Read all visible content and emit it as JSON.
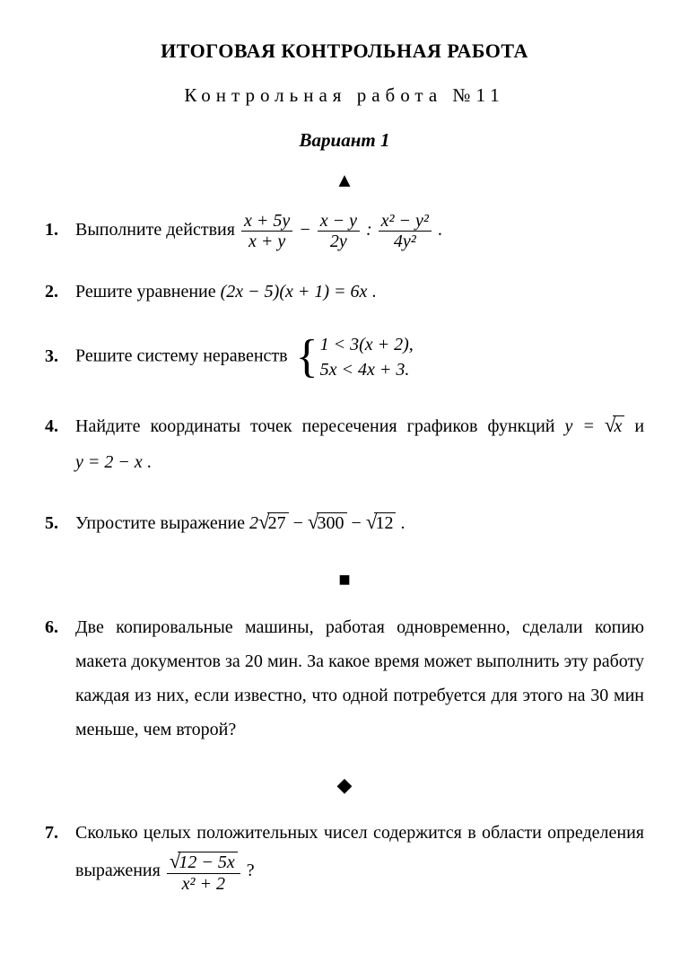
{
  "header": {
    "main_title": "ИТОГОВАЯ КОНТРОЛЬНАЯ РАБОТА",
    "subtitle": "Контрольная работа №11",
    "variant": "Вариант 1"
  },
  "markers": {
    "triangle": "▲",
    "square": "■",
    "diamond": "◆"
  },
  "tasks": {
    "t1": {
      "text": "Выполните действия ",
      "f1_num": "x + 5y",
      "f1_den": "x + y",
      "f2_num": "x − y",
      "f2_den": "2y",
      "f3_num": "x² − y²",
      "f3_den": "4y²",
      "op1": " − ",
      "op2": " : ",
      "end": " ."
    },
    "t2": {
      "text": "Решите уравнение  ",
      "formula": "(2x − 5)(x + 1) = 6x",
      "end": " ."
    },
    "t3": {
      "text": "Решите систему неравенств ",
      "line1": "1 < 3(x + 2),",
      "line2": "5x < 4x + 3."
    },
    "t4": {
      "text_a": "Найдите координаты точек пересечения графиков функций  ",
      "y_eq": "y = ",
      "sqrt_x": "x",
      "and": "  и  ",
      "f2": "y = 2 − x",
      "end": " ."
    },
    "t5": {
      "text": "Упростите выражение  ",
      "two": "2",
      "a": "27",
      "minus1": " − ",
      "b": "300",
      "minus2": " − ",
      "c": "12",
      "end": " ."
    },
    "t6": {
      "text": "Две копировальные машины, работая одновременно, сделали копию макета документов за 20 мин. За какое время может выполнить эту работу каждая из них, если известно, что одной потребуется для этого на 30 мин меньше, чем второй?"
    },
    "t7": {
      "text_a": "Сколько целых положительных чисел содержится в области определения выражения  ",
      "num_sqrt": "12 − 5x",
      "den": "x² + 2",
      "end": " ?"
    }
  }
}
